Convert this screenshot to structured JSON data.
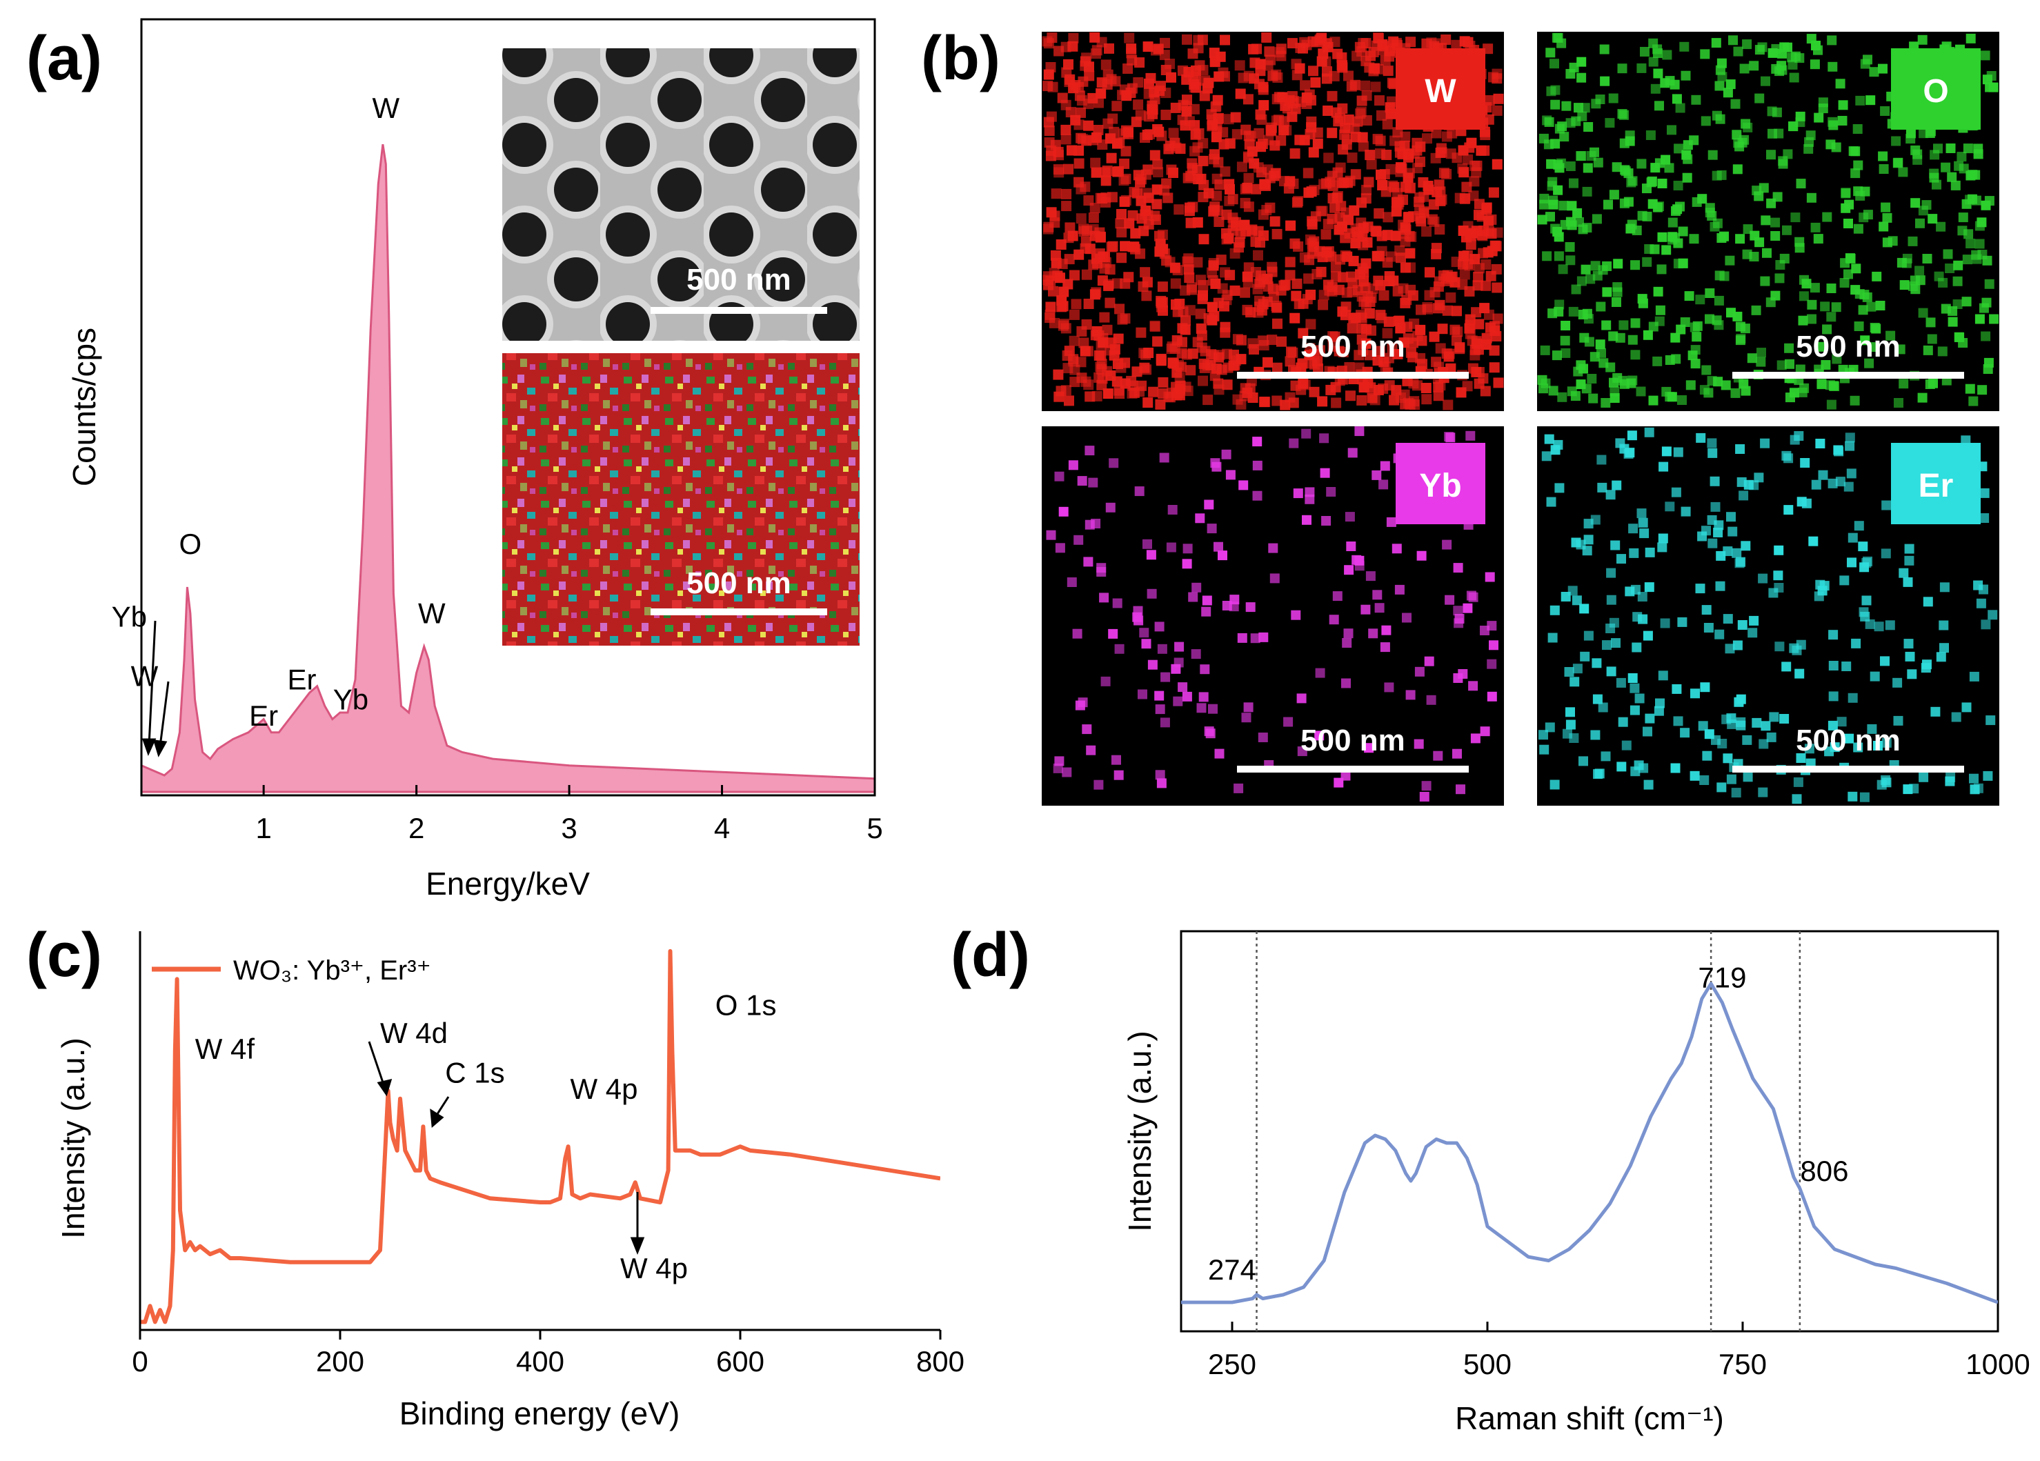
{
  "panels": {
    "a": "(a)",
    "b": "(b)",
    "c": "(c)",
    "d": "(d)"
  },
  "colors": {
    "eds_fill": "#f29ab8",
    "eds_line": "#d9567f",
    "xps_line": "#f26440",
    "raman_line": "#7a93cf",
    "map_W": "#e8201a",
    "map_O": "#2ed12e",
    "map_Yb": "#e83ae8",
    "map_Er": "#2fdede"
  },
  "inset": {
    "sem_scale": "500 nm",
    "overlay_scale": "500 nm"
  },
  "maps": [
    {
      "element": "W",
      "scale": "500 nm"
    },
    {
      "element": "O",
      "scale": "500 nm"
    },
    {
      "element": "Yb",
      "scale": "500 nm"
    },
    {
      "element": "Er",
      "scale": "500 nm"
    }
  ],
  "chart_data": [
    {
      "id": "eds",
      "type": "area",
      "xlabel": "Energy/keV",
      "ylabel": "Counts/cps",
      "xlim": [
        0.2,
        5
      ],
      "ylim": [
        0,
        100
      ],
      "xticks": [
        1,
        2,
        3,
        4,
        5
      ],
      "x": [
        0.2,
        0.3,
        0.35,
        0.4,
        0.45,
        0.48,
        0.5,
        0.52,
        0.55,
        0.6,
        0.65,
        0.7,
        0.8,
        0.9,
        1.0,
        1.05,
        1.1,
        1.2,
        1.3,
        1.35,
        1.4,
        1.45,
        1.5,
        1.55,
        1.6,
        1.65,
        1.7,
        1.75,
        1.78,
        1.8,
        1.82,
        1.85,
        1.9,
        1.95,
        2.0,
        2.05,
        2.08,
        2.12,
        2.2,
        2.3,
        2.5,
        3.0,
        3.5,
        4.0,
        4.5,
        5.0
      ],
      "y": [
        4,
        3,
        2.5,
        3.5,
        9,
        20,
        31,
        27,
        14,
        6,
        5,
        6.5,
        8,
        9,
        11,
        9,
        9,
        12,
        15,
        16,
        13,
        11,
        12,
        12,
        17,
        40,
        70,
        92,
        98,
        95,
        72,
        30,
        13,
        12,
        18,
        22,
        20,
        13,
        7,
        6,
        5,
        4,
        3.5,
        3,
        2.5,
        2
      ],
      "annotations": [
        {
          "text": "O",
          "x": 0.52,
          "y": 36
        },
        {
          "text": "Yb",
          "x": 0.12,
          "y": 25
        },
        {
          "text": "W",
          "x": 0.22,
          "y": 16
        },
        {
          "text": "Er",
          "x": 1.0,
          "y": 10
        },
        {
          "text": "Er",
          "x": 1.25,
          "y": 15.5
        },
        {
          "text": "Yb",
          "x": 1.57,
          "y": 12.5
        },
        {
          "text": "W",
          "x": 1.8,
          "y": 102
        },
        {
          "text": "W",
          "x": 2.1,
          "y": 25.5
        }
      ]
    },
    {
      "id": "xps",
      "type": "line",
      "xlabel": "Binding energy (eV)",
      "ylabel": "Intensity (a.u.)",
      "legend": "WO₃: Yb³⁺, Er³⁺",
      "xlim": [
        0,
        800
      ],
      "ylim": [
        0,
        100
      ],
      "xticks": [
        0,
        200,
        400,
        600,
        800
      ],
      "x": [
        0,
        5,
        10,
        15,
        20,
        25,
        30,
        33,
        35,
        37,
        40,
        45,
        50,
        55,
        60,
        70,
        80,
        90,
        100,
        150,
        200,
        230,
        240,
        245,
        248,
        250,
        253,
        257,
        260,
        265,
        275,
        280,
        283,
        286,
        290,
        300,
        350,
        400,
        410,
        420,
        425,
        428,
        432,
        440,
        450,
        480,
        490,
        495,
        500,
        520,
        528,
        530,
        532,
        535,
        540,
        550,
        560,
        580,
        590,
        600,
        610,
        650,
        700,
        750,
        800
      ],
      "y": [
        2,
        2,
        6,
        2,
        5,
        2,
        6,
        20,
        70,
        88,
        30,
        20,
        22,
        20,
        21,
        19,
        20,
        18,
        18,
        17,
        17,
        17,
        20,
        45,
        60,
        52,
        48,
        45,
        58,
        45,
        40,
        40,
        51,
        40,
        38,
        37,
        33,
        32,
        32,
        33,
        43,
        46,
        34,
        33,
        34,
        33,
        34,
        37,
        33,
        32,
        40,
        95,
        70,
        45,
        45,
        45,
        44,
        44,
        45,
        46,
        45,
        44,
        42,
        40,
        38
      ],
      "annotations": [
        {
          "text": "W 4f",
          "x": 55,
          "y": 68
        },
        {
          "text": "W 4d",
          "x": 240,
          "y": 72
        },
        {
          "text": "C 1s",
          "x": 305,
          "y": 62
        },
        {
          "text": "W 4p",
          "x": 430,
          "y": 58
        },
        {
          "text": "W 4p",
          "x": 480,
          "y": 13
        },
        {
          "text": "O 1s",
          "x": 575,
          "y": 79
        }
      ]
    },
    {
      "id": "raman",
      "type": "line",
      "xlabel": "Raman shift (cm⁻¹)",
      "ylabel": "Intensity (a.u.)",
      "xlim": [
        200,
        1000
      ],
      "ylim": [
        0,
        100
      ],
      "xticks": [
        250,
        500,
        750,
        1000
      ],
      "vlines": [
        274,
        719,
        806
      ],
      "x": [
        200,
        250,
        270,
        274,
        280,
        300,
        320,
        340,
        360,
        380,
        390,
        400,
        410,
        420,
        425,
        430,
        440,
        450,
        460,
        470,
        480,
        490,
        500,
        520,
        540,
        560,
        580,
        600,
        620,
        640,
        660,
        680,
        690,
        700,
        710,
        719,
        730,
        740,
        760,
        780,
        800,
        806,
        820,
        840,
        860,
        880,
        900,
        950,
        1000
      ],
      "y": [
        4,
        4,
        5,
        6,
        5,
        6,
        8,
        15,
        33,
        46,
        48,
        47,
        44,
        38,
        36,
        38,
        45,
        47,
        46,
        46,
        42,
        35,
        24,
        20,
        16,
        15,
        18,
        23,
        30,
        40,
        53,
        63,
        67,
        74,
        84,
        88,
        83,
        76,
        63,
        55,
        37,
        34,
        24,
        18,
        16,
        14,
        13,
        9,
        4
      ],
      "annotations": [
        {
          "text": "274",
          "x": 250,
          "y": 10
        },
        {
          "text": "719",
          "x": 730,
          "y": 87
        },
        {
          "text": "806",
          "x": 830,
          "y": 36
        }
      ]
    }
  ]
}
